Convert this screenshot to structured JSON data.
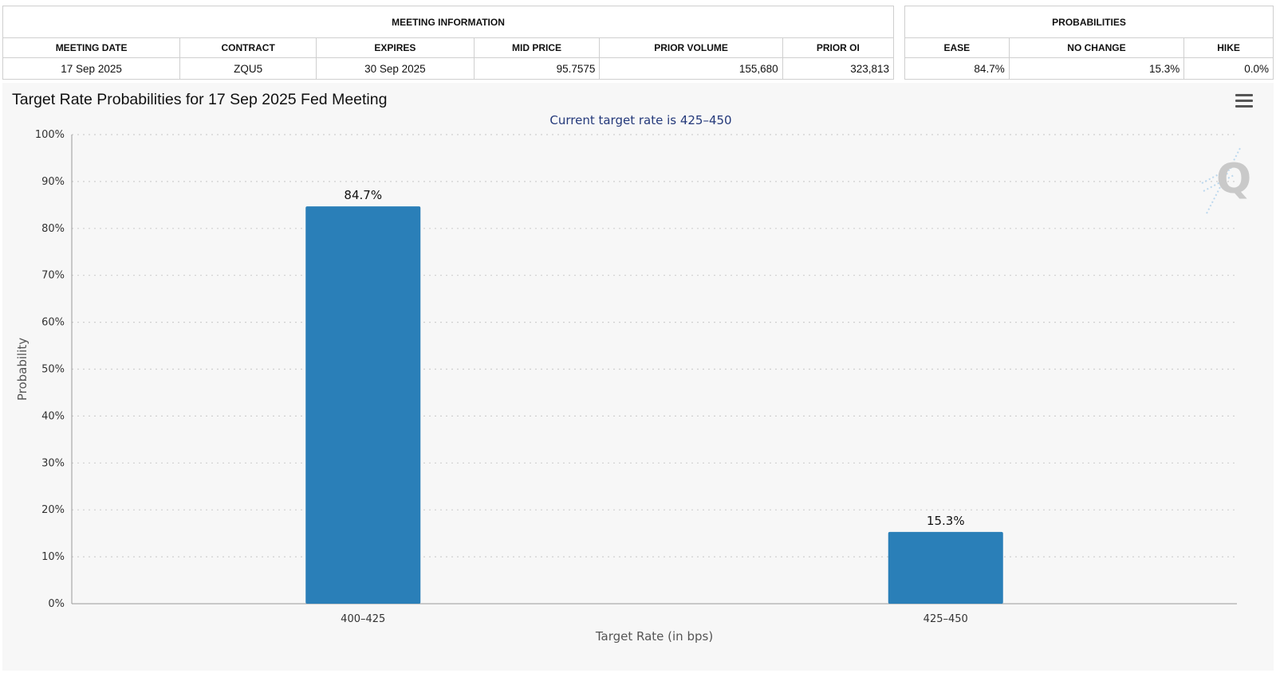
{
  "meeting_info": {
    "group_header": "MEETING INFORMATION",
    "columns": [
      "MEETING DATE",
      "CONTRACT",
      "EXPIRES",
      "MID PRICE",
      "PRIOR VOLUME",
      "PRIOR OI"
    ],
    "row": [
      "17 Sep 2025",
      "ZQU5",
      "30 Sep 2025",
      "95.7575",
      "155,680",
      "323,813"
    ]
  },
  "probabilities": {
    "group_header": "PROBABILITIES",
    "columns": [
      "EASE",
      "NO CHANGE",
      "HIKE"
    ],
    "row": [
      "84.7%",
      "15.3%",
      "0.0%"
    ]
  },
  "chart": {
    "menu_icon": "hamburger-menu-icon",
    "watermark_icon": "q-logo-icon"
  },
  "chart_data": {
    "type": "bar",
    "title": "Target Rate Probabilities for 17 Sep 2025 Fed Meeting",
    "subtitle": "Current target rate is 425–450",
    "categories": [
      "400–425",
      "425–450"
    ],
    "values": [
      84.7,
      15.3
    ],
    "data_labels": [
      "84.7%",
      "15.3%"
    ],
    "xlabel": "Target Rate (in bps)",
    "ylabel": "Probability",
    "ylim": [
      0,
      100
    ],
    "yticks": [
      "0%",
      "10%",
      "20%",
      "30%",
      "40%",
      "50%",
      "60%",
      "70%",
      "80%",
      "90%",
      "100%"
    ],
    "grid": true,
    "bar_color": "#2a7fb8"
  }
}
